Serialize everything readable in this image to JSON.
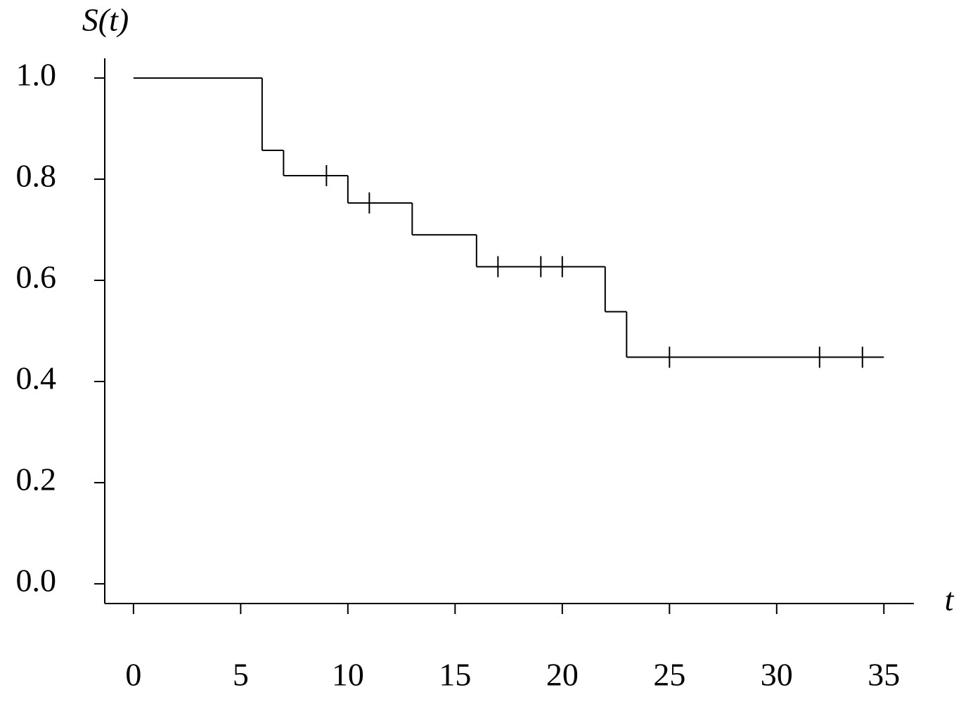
{
  "chart_data": {
    "type": "step",
    "y_label": "S(t)",
    "x_label": "t",
    "x": [
      0,
      6,
      7,
      10,
      13,
      16,
      22,
      23,
      35
    ],
    "values": [
      1.0,
      0.857,
      0.807,
      0.753,
      0.69,
      0.627,
      0.538,
      0.448,
      0.448
    ],
    "censored": {
      "x": [
        9,
        11,
        17,
        19,
        20,
        25,
        32,
        34
      ],
      "values": [
        0.807,
        0.753,
        0.627,
        0.627,
        0.627,
        0.448,
        0.448,
        0.448
      ]
    },
    "color": "#000000",
    "xlim": [
      -1.34,
      36.4
    ],
    "xticks": [
      0,
      5,
      10,
      15,
      20,
      25,
      30,
      35
    ],
    "ylim": [
      -0.039,
      1.039
    ],
    "yticks": [
      {
        "value": 0,
        "label": "0.0"
      },
      {
        "value": 0.2,
        "label": "0.2"
      },
      {
        "value": 0.4,
        "label": "0.4"
      },
      {
        "value": 0.6,
        "label": "0.6"
      },
      {
        "value": 0.8,
        "label": "0.8"
      },
      {
        "value": 1,
        "label": "1.0"
      }
    ],
    "grid": false
  }
}
